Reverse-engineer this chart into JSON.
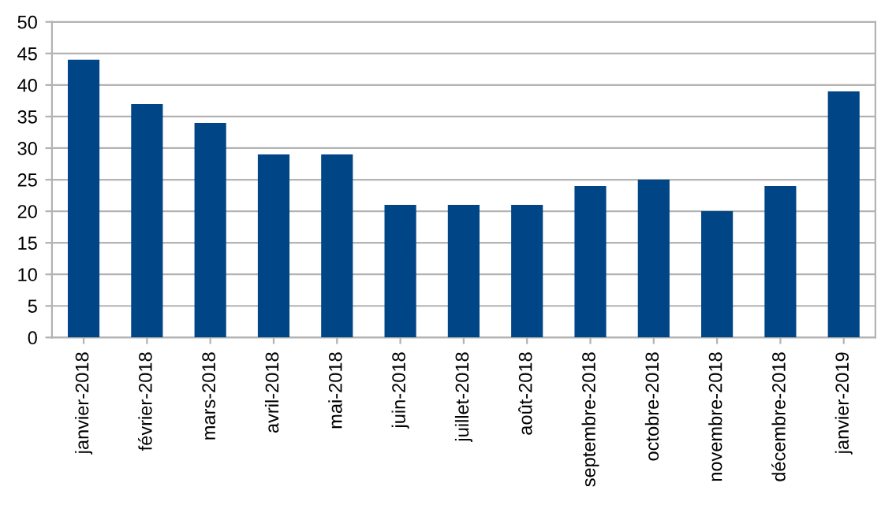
{
  "chart_data": {
    "type": "bar",
    "categories": [
      "janvier-2018",
      "février-2018",
      "mars-2018",
      "avril-2018",
      "mai-2018",
      "juin-2018",
      "juillet-2018",
      "août-2018",
      "septembre-2018",
      "octobre-2018",
      "novembre-2018",
      "décembre-2018",
      "janvier-2019"
    ],
    "values": [
      44,
      37,
      34,
      29,
      29,
      21,
      21,
      21,
      24,
      25,
      20,
      24,
      39
    ],
    "color": "#004586",
    "ylim": [
      0,
      50
    ],
    "yticks": [
      0,
      5,
      10,
      15,
      20,
      25,
      30,
      35,
      40,
      45,
      50
    ],
    "grid": "y"
  }
}
